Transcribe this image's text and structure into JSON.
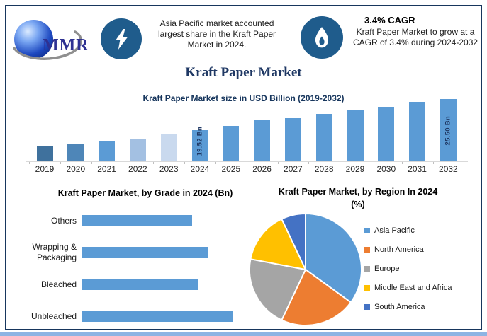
{
  "colors": {
    "accent_navy": "#17365D",
    "title_navy": "#1F3864",
    "icon_circle": "#1F5C8C",
    "bar_blue": "#5B9BD5",
    "border": "#17365D",
    "bottom_strip": "#8EB4E3",
    "logo_text": "#2E3192",
    "axis_gray": "#A6A6A6",
    "baseline_gray": "#D9D9D9"
  },
  "header": {
    "logo_text": "MMR",
    "highlight1": {
      "icon": "lightning-icon",
      "lines": [
        "Asia Pacific market accounted",
        "largest share in the Kraft Paper",
        "Market  in 2024."
      ]
    },
    "highlight2": {
      "icon": "flame-icon",
      "title": "3.4% CAGR",
      "lines": [
        "Kraft Paper Market to grow at a",
        "CAGR of 3.4% during 2024-2032"
      ]
    }
  },
  "page_title": "Kraft Paper Market",
  "chart_data": [
    {
      "id": "market_size",
      "type": "bar",
      "title": "Kraft Paper Market size in USD Billion (2019-2032)",
      "categories": [
        "2019",
        "2020",
        "2021",
        "2022",
        "2023",
        "2024",
        "2025",
        "2026",
        "2027",
        "2028",
        "2029",
        "2030",
        "2031",
        "2032"
      ],
      "values": [
        16.4,
        16.8,
        17.3,
        17.9,
        18.7,
        19.52,
        20.3,
        21.5,
        21.8,
        22.6,
        23.3,
        24.0,
        24.9,
        25.5
      ],
      "ylabel": "USD Billion",
      "ylim": [
        13.5,
        25.5
      ],
      "grid": false,
      "bar_labels": [
        {
          "index": 5,
          "text": "19.52 Bn"
        },
        {
          "index": 13,
          "text": "25.50 Bn"
        }
      ],
      "bar_colors": [
        "#3F719D",
        "#4E86B8",
        "#5B9BD5",
        "#A3C0E2",
        "#C9D9EE",
        "#5B9BD5",
        "#5B9BD5",
        "#5B9BD5",
        "#5B9BD5",
        "#5B9BD5",
        "#5B9BD5",
        "#5B9BD5",
        "#5B9BD5",
        "#5B9BD5"
      ]
    },
    {
      "id": "by_grade",
      "type": "bar",
      "orientation": "horizontal",
      "title": "Kraft Paper Market, by Grade in 2024 (Bn)",
      "categories": [
        "Others",
        "Wrapping & Packaging",
        "Bleached",
        "Unbleached"
      ],
      "values": [
        4.3,
        4.9,
        4.5,
        5.9
      ],
      "xlim": [
        0,
        6.2
      ],
      "grid": false,
      "bar_color": "#5B9BD5"
    },
    {
      "id": "by_region",
      "type": "pie",
      "title": "Kraft Paper Market, by Region In 2024 (%)",
      "title_lines": [
        "Kraft Paper Market, by Region In 2024",
        "(%)"
      ],
      "start_angle_deg": 0,
      "legend_position": "right",
      "slices": [
        {
          "label": "Asia Pacific",
          "value": 35,
          "color": "#5B9BD5"
        },
        {
          "label": "North America",
          "value": 22,
          "color": "#ED7D31"
        },
        {
          "label": "Europe",
          "value": 21,
          "color": "#A5A5A5"
        },
        {
          "label": "Middle East and Africa",
          "value": 15,
          "color": "#FFC000"
        },
        {
          "label": "South America",
          "value": 7,
          "color": "#4472C4"
        }
      ]
    }
  ]
}
